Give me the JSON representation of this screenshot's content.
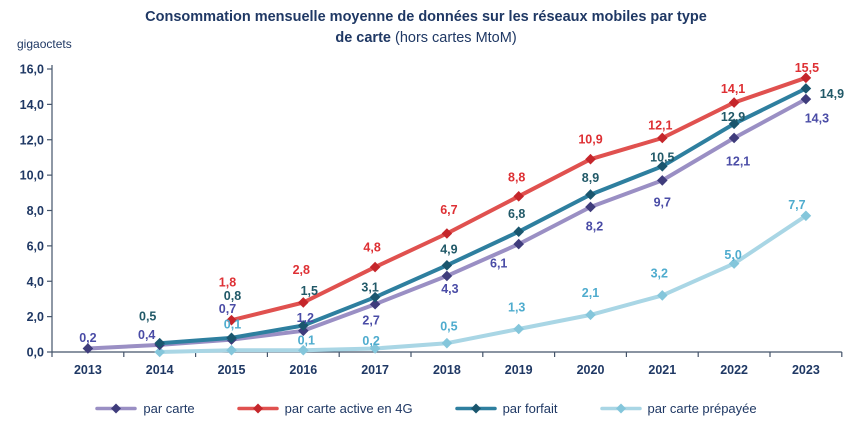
{
  "title": {
    "line1": "Consommation mensuelle moyenne de données sur les réseaux mobiles par type",
    "line2_bold": "de carte",
    "line2_rest": " (hors cartes MtoM)"
  },
  "unit_label": "gigaoctets",
  "colors": {
    "title_text": "#1F3864",
    "axis_line": "#44546A",
    "axis_text": "#1F3864",
    "background": "#FFFFFF"
  },
  "chart_data": {
    "type": "line",
    "title": "Consommation mensuelle moyenne de données sur les réseaux mobiles par type de carte (hors cartes MtoM)",
    "ylabel": "gigaoctets",
    "xlabel": "",
    "ylim": [
      0,
      16
    ],
    "ytick_step": 2,
    "ytick_labels": [
      "0,0",
      "2,0",
      "4,0",
      "6,0",
      "8,0",
      "10,0",
      "12,0",
      "14,0",
      "16,0"
    ],
    "grid": false,
    "legend_position": "bottom",
    "categories": [
      "2013",
      "2014",
      "2015",
      "2016",
      "2017",
      "2018",
      "2019",
      "2020",
      "2021",
      "2022",
      "2023"
    ],
    "series": [
      {
        "name": "par carte",
        "line_color": "#9A8FC4",
        "marker_color": "#3F3C7C",
        "label_color": "#4A4CA6",
        "values": [
          0.2,
          0.4,
          0.7,
          1.2,
          2.7,
          4.3,
          6.1,
          8.2,
          9.7,
          12.1,
          14.3
        ],
        "labels": [
          "0,2",
          "0,4",
          "0,7",
          "1,2",
          "2,7",
          "4,3",
          "6,1",
          "8,2",
          "9,7",
          "12,1",
          "14,3"
        ]
      },
      {
        "name": "par carte active en 4G",
        "line_color": "#E0514F",
        "marker_color": "#C5262B",
        "label_color": "#DE3034",
        "values": [
          null,
          null,
          1.8,
          2.8,
          4.8,
          6.7,
          8.8,
          10.9,
          12.1,
          14.1,
          15.5
        ],
        "labels": [
          "",
          "",
          "1,8",
          "2,8",
          "4,8",
          "6,7",
          "8,8",
          "10,9",
          "12,1",
          "14,1",
          "15,5"
        ]
      },
      {
        "name": "par forfait",
        "line_color": "#2E7F9F",
        "marker_color": "#1A566E",
        "label_color": "#215968",
        "values": [
          null,
          0.5,
          0.8,
          1.5,
          3.1,
          4.9,
          6.8,
          8.9,
          10.5,
          12.9,
          14.9
        ],
        "labels": [
          "",
          "0,5",
          "0,8",
          "1,5",
          "3,1",
          "4,9",
          "6,8",
          "8,9",
          "10,5",
          "12,9",
          "14,9"
        ]
      },
      {
        "name": "par carte prépayée",
        "line_color": "#A9D6E5",
        "marker_color": "#84C6DB",
        "label_color": "#4FACCE",
        "values": [
          null,
          0.0,
          0.1,
          0.1,
          0.2,
          0.5,
          1.3,
          2.1,
          3.2,
          5.0,
          7.7
        ],
        "labels": [
          "",
          "",
          "0,1",
          "0,1",
          "0,2",
          "0,5",
          "1,3",
          "2,1",
          "3,2",
          "5,0",
          "7,7"
        ]
      }
    ]
  }
}
